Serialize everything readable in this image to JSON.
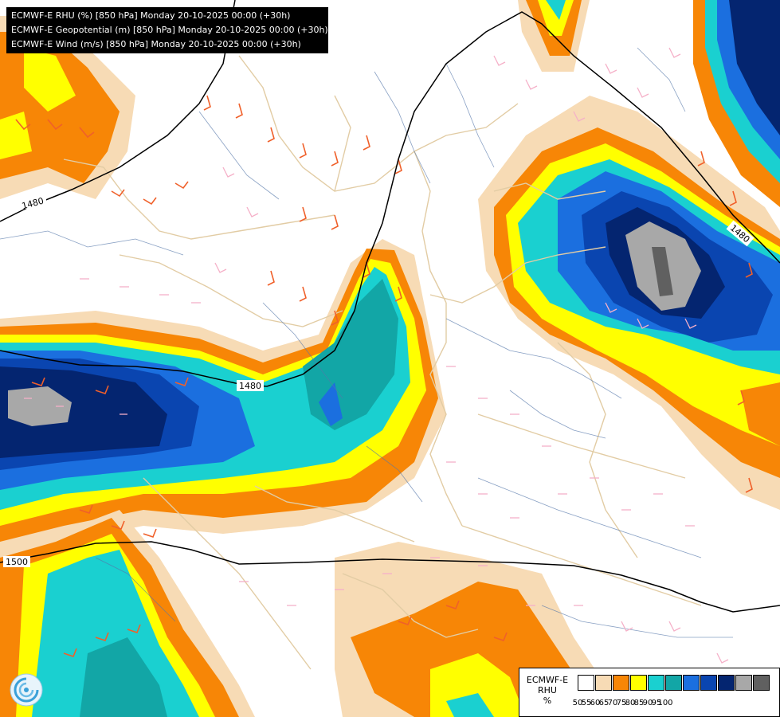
{
  "header": {
    "lines": [
      "ECMWF-E RHU (%) [850 hPa] Monday 20-10-2025 00:00 (+30h)",
      "ECMWF-E Geopotential (m) [850 hPa] Monday 20-10-2025 00:00 (+30h)",
      "ECMWF-E Wind (m/s) [850 hPa] Monday 20-10-2025 00:00 (+30h)"
    ]
  },
  "map": {
    "contours": [
      {
        "label": "1480"
      },
      {
        "label": "1480"
      },
      {
        "label": "1480"
      },
      {
        "label": "1500"
      }
    ],
    "line_color": "#000000",
    "land_border_color": "#e2cca4",
    "river_color": "#5577aa",
    "wind_colors": {
      "light": "#f5b0c8",
      "strong": "#f0602a"
    }
  },
  "legend": {
    "title_lines": [
      "ECMWF-E",
      "RHU",
      "%"
    ],
    "levels": [
      "50",
      "55",
      "60",
      "65",
      "70",
      "75",
      "80",
      "85",
      "90",
      "95",
      "100"
    ],
    "colors": [
      "#ffffff",
      "#f7dbb5",
      "#f78606",
      "#ffff00",
      "#1ad0d0",
      "#12a6a6",
      "#1b6fdf",
      "#0a45b0",
      "#042570",
      "#a8a8a8",
      "#606060"
    ]
  },
  "logo": {
    "icon": "ecmwf-logo-icon"
  }
}
